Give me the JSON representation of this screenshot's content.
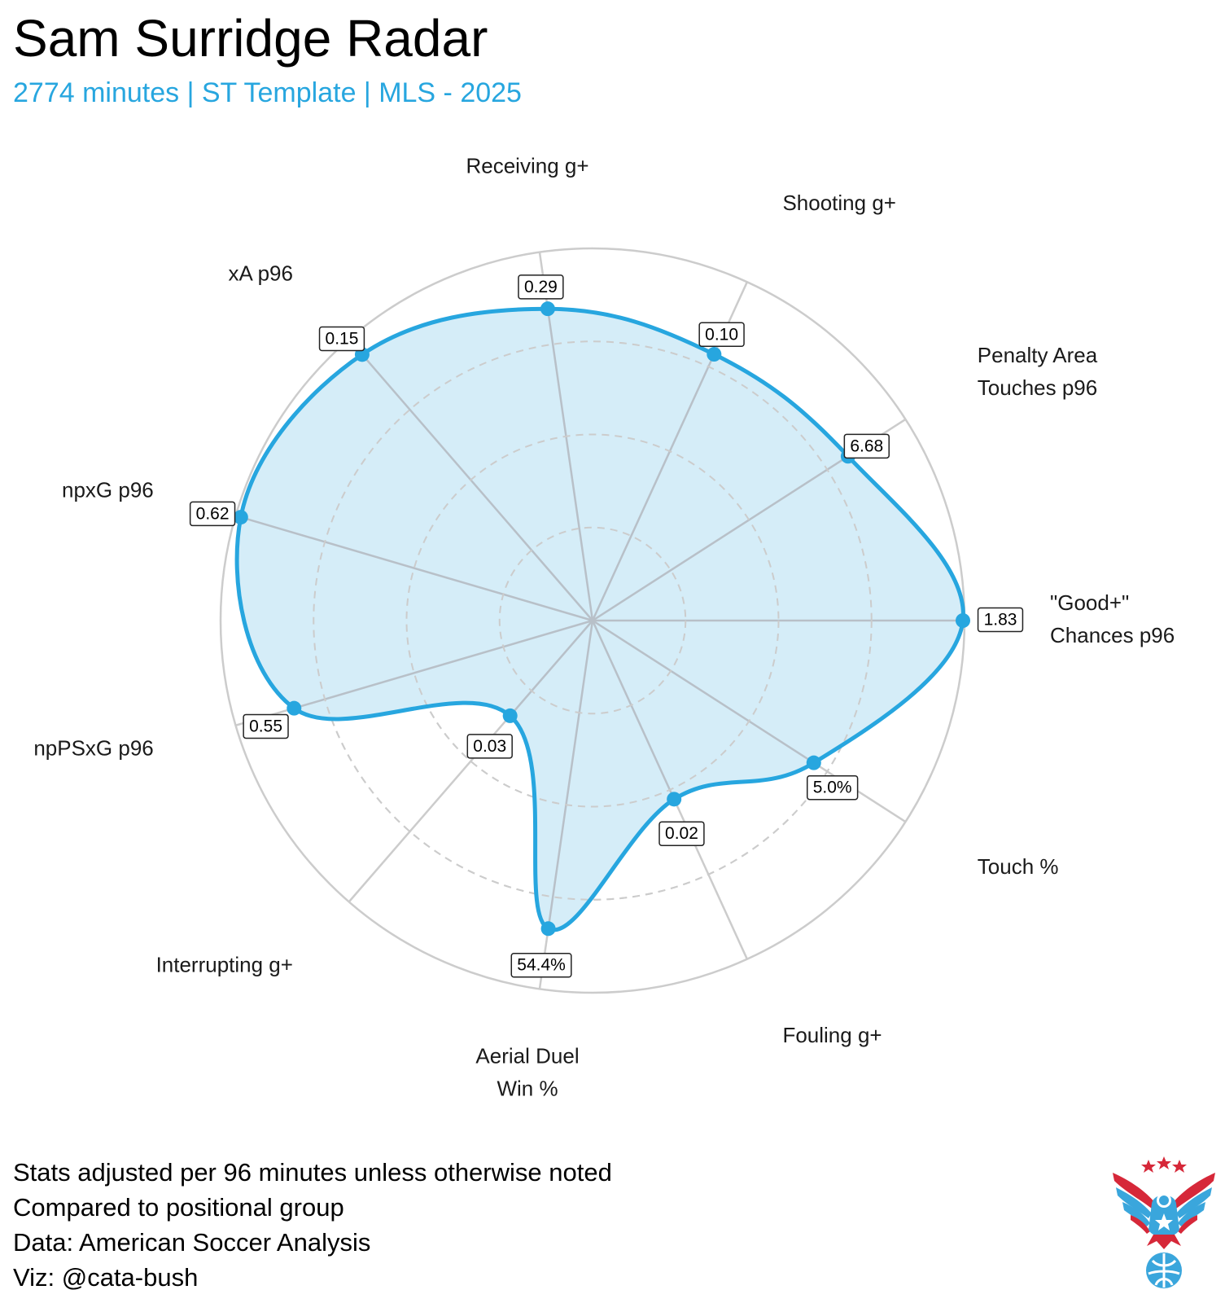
{
  "title": "Sam Surridge Radar",
  "subtitle": "2774 minutes | ST Template | MLS - 2025",
  "footnotes": [
    "Stats adjusted per 96 minutes unless otherwise noted",
    "Compared to positional group",
    "Data: American Soccer Analysis",
    "Viz: @cata-bush"
  ],
  "colors": {
    "accent": "#27a6df",
    "fill": "#d3ecf8",
    "ring": "#cccccc",
    "spoke": "#b8c0c8"
  },
  "chart_data": {
    "type": "radar",
    "rings": 4,
    "grid": true,
    "axes": [
      {
        "label": [
          "\"Good+\"",
          "Chances p96"
        ],
        "value_label": "1.83",
        "percentile": 1.0
      },
      {
        "label": [
          "Penalty Area",
          "Touches p96"
        ],
        "value_label": "6.68",
        "percentile": 0.82
      },
      {
        "label": [
          "Shooting g+"
        ],
        "value_label": "0.10",
        "percentile": 0.79
      },
      {
        "label": [
          "Receiving g+"
        ],
        "value_label": "0.29",
        "percentile": 0.85
      },
      {
        "label": [
          "xA p96"
        ],
        "value_label": "0.15",
        "percentile": 0.95
      },
      {
        "label": [
          "npxG p96"
        ],
        "value_label": "0.62",
        "percentile": 0.99
      },
      {
        "label": [
          "npPSxG p96"
        ],
        "value_label": "0.55",
        "percentile": 0.84
      },
      {
        "label": [
          "Interrupting g+"
        ],
        "value_label": "0.03",
        "percentile": 0.34
      },
      {
        "label": [
          "Aerial Duel",
          "Win %"
        ],
        "value_label": "54.4%",
        "percentile": 0.84
      },
      {
        "label": [
          "Fouling g+"
        ],
        "value_label": "0.02",
        "percentile": 0.53
      },
      {
        "label": [
          "Touch %"
        ],
        "value_label": "5.0%",
        "percentile": 0.71
      }
    ]
  }
}
